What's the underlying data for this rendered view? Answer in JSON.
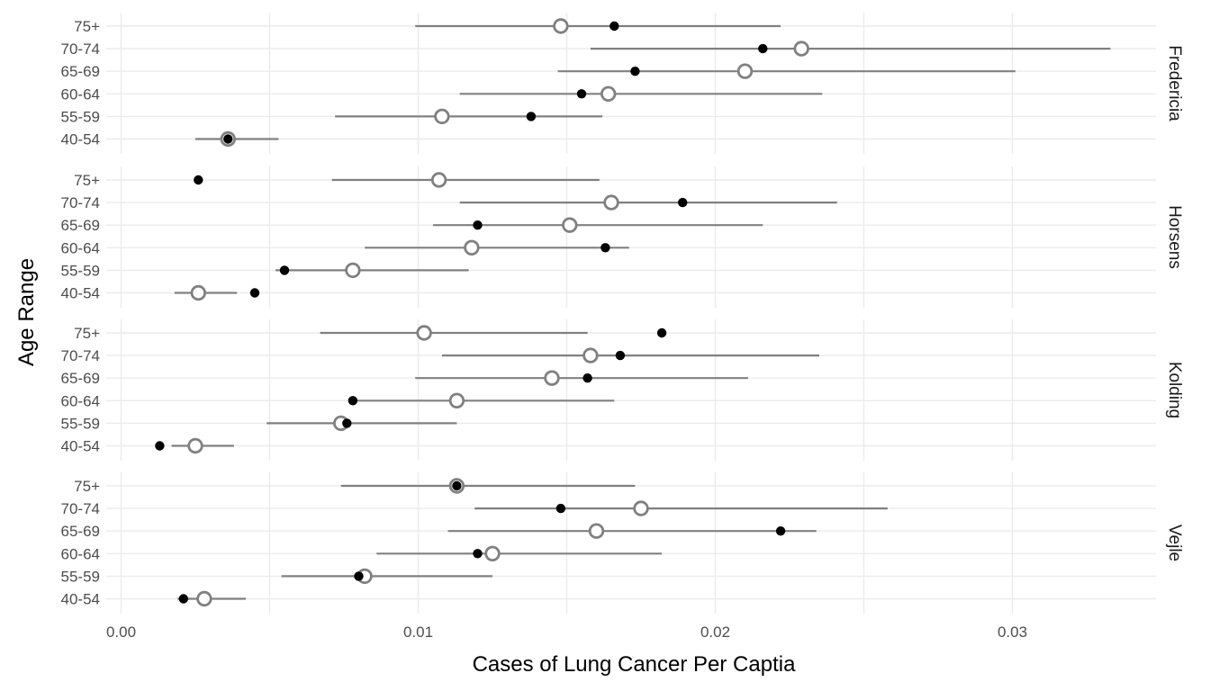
{
  "chart_data": {
    "type": "scatter",
    "xlabel": "Cases of Lung Cancer Per Captia",
    "ylabel": "Age Range",
    "xlim": [
      0,
      0.035
    ],
    "x_ticks": [
      0,
      0.01,
      0.02,
      0.03
    ],
    "x_tick_labels": [
      "0.00",
      "0.01",
      "0.02",
      "0.03"
    ],
    "categories": [
      "40-54",
      "55-59",
      "60-64",
      "65-69",
      "70-74",
      "75+"
    ],
    "grid": true,
    "legend": "none",
    "colors": {
      "interval": "#808080",
      "estimate_ring": "#808080",
      "observed_dot": "#000000",
      "grid": "#ebebeb"
    },
    "panels": [
      {
        "name": "Fredericia",
        "rows": [
          {
            "age": "75+",
            "lower": 0.0099,
            "upper": 0.0222,
            "estimate": 0.0148,
            "observed": 0.0166
          },
          {
            "age": "70-74",
            "lower": 0.0158,
            "upper": 0.0333,
            "estimate": 0.0229,
            "observed": 0.0216
          },
          {
            "age": "65-69",
            "lower": 0.0147,
            "upper": 0.0301,
            "estimate": 0.021,
            "observed": 0.0173
          },
          {
            "age": "60-64",
            "lower": 0.0114,
            "upper": 0.0236,
            "estimate": 0.0164,
            "observed": 0.0155
          },
          {
            "age": "55-59",
            "lower": 0.0072,
            "upper": 0.0162,
            "estimate": 0.0108,
            "observed": 0.0138
          },
          {
            "age": "40-54",
            "lower": 0.0025,
            "upper": 0.0053,
            "estimate": 0.0036,
            "observed": 0.0036
          }
        ]
      },
      {
        "name": "Horsens",
        "rows": [
          {
            "age": "75+",
            "lower": 0.0071,
            "upper": 0.0161,
            "estimate": 0.0107,
            "observed": 0.0026
          },
          {
            "age": "70-74",
            "lower": 0.0114,
            "upper": 0.0241,
            "estimate": 0.0165,
            "observed": 0.0189
          },
          {
            "age": "65-69",
            "lower": 0.0105,
            "upper": 0.0216,
            "estimate": 0.0151,
            "observed": 0.012
          },
          {
            "age": "60-64",
            "lower": 0.0082,
            "upper": 0.0171,
            "estimate": 0.0118,
            "observed": 0.0163
          },
          {
            "age": "55-59",
            "lower": 0.0052,
            "upper": 0.0117,
            "estimate": 0.0078,
            "observed": 0.0055
          },
          {
            "age": "40-54",
            "lower": 0.0018,
            "upper": 0.0039,
            "estimate": 0.0026,
            "observed": 0.0045
          }
        ]
      },
      {
        "name": "Kolding",
        "rows": [
          {
            "age": "75+",
            "lower": 0.0067,
            "upper": 0.0157,
            "estimate": 0.0102,
            "observed": 0.0182
          },
          {
            "age": "70-74",
            "lower": 0.0108,
            "upper": 0.0235,
            "estimate": 0.0158,
            "observed": 0.0168
          },
          {
            "age": "65-69",
            "lower": 0.0099,
            "upper": 0.0211,
            "estimate": 0.0145,
            "observed": 0.0157
          },
          {
            "age": "60-64",
            "lower": 0.0078,
            "upper": 0.0166,
            "estimate": 0.0113,
            "observed": 0.0078
          },
          {
            "age": "55-59",
            "lower": 0.0049,
            "upper": 0.0113,
            "estimate": 0.0074,
            "observed": 0.0076
          },
          {
            "age": "40-54",
            "lower": 0.0017,
            "upper": 0.0038,
            "estimate": 0.0025,
            "observed": 0.0013
          }
        ]
      },
      {
        "name": "Vejle",
        "rows": [
          {
            "age": "75+",
            "lower": 0.0074,
            "upper": 0.0173,
            "estimate": 0.0113,
            "observed": 0.0113
          },
          {
            "age": "70-74",
            "lower": 0.0119,
            "upper": 0.0258,
            "estimate": 0.0175,
            "observed": 0.0148
          },
          {
            "age": "65-69",
            "lower": 0.011,
            "upper": 0.0234,
            "estimate": 0.016,
            "observed": 0.0222
          },
          {
            "age": "60-64",
            "lower": 0.0086,
            "upper": 0.0182,
            "estimate": 0.0125,
            "observed": 0.012
          },
          {
            "age": "55-59",
            "lower": 0.0054,
            "upper": 0.0125,
            "estimate": 0.0082,
            "observed": 0.008
          },
          {
            "age": "40-54",
            "lower": 0.0019,
            "upper": 0.0042,
            "estimate": 0.0028,
            "observed": 0.0021
          }
        ]
      }
    ]
  }
}
